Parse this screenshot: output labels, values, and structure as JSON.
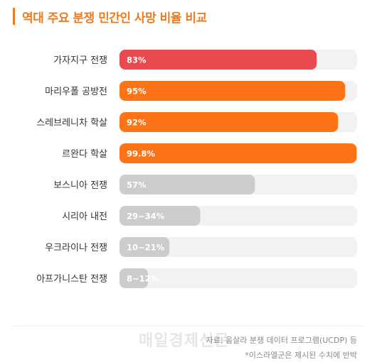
{
  "header": {
    "title": "역대 주요 분쟁 민간인 사망 비율 비교"
  },
  "chart_data": {
    "type": "bar",
    "orientation": "horizontal",
    "title": "역대 주요 분쟁 민간인 사망 비율 비교",
    "xlim": [
      0,
      100
    ],
    "categories": [
      "가자지구 전쟁",
      "마리우폴 공방전",
      "스레브레니차 학살",
      "르완다 학살",
      "보스니아 전쟁",
      "시리아 내전",
      "우크라이나 전쟁",
      "아프가니스탄 전쟁"
    ],
    "values": [
      83,
      95,
      92,
      99.8,
      57,
      34,
      21,
      12
    ],
    "value_labels": [
      "83%",
      "95%",
      "92%",
      "99.8%",
      "57%",
      "29~34%",
      "10~21%",
      "8~12%"
    ],
    "bar_colors": [
      "#e84a4f",
      "#fd7417",
      "#fd7417",
      "#fd7417",
      "#cccccc",
      "#cccccc",
      "#cccccc",
      "#cccccc"
    ],
    "track_color": "#f2f2f2",
    "grid": false,
    "legend": "none"
  },
  "footer": {
    "watermark": "매일경제신문",
    "source": "자료: 웁살라 분쟁 데이터 프로그램(UCDP) 등",
    "remark": "*이스라엘군은 제시된 수치에 반박"
  }
}
